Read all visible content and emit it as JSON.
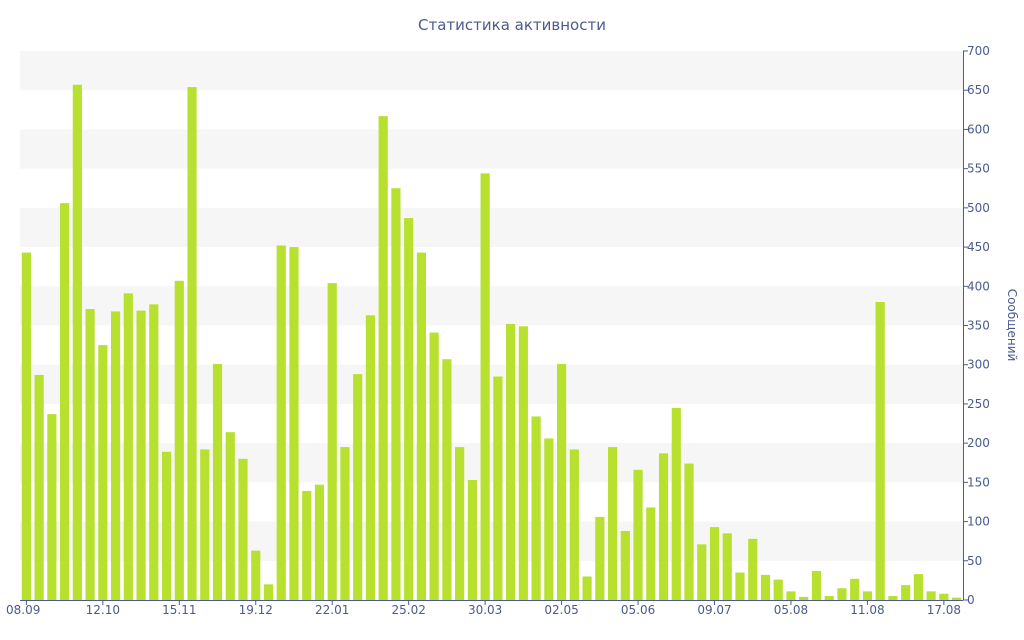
{
  "colors": {
    "bar": "#b8e02e",
    "axis": "#4b5b8c",
    "band": "#f6f6f6",
    "text": "#4b5b8c"
  },
  "chart_data": {
    "type": "bar",
    "title": "Статистика активности",
    "xlabel": "",
    "ylabel": "Сообщений",
    "ylim": [
      0,
      700
    ],
    "yticks": [
      0,
      50,
      100,
      150,
      200,
      250,
      300,
      350,
      400,
      450,
      500,
      550,
      600,
      650,
      700
    ],
    "y_axis_side": "right",
    "grid": "alternating horizontal bands",
    "x_tick_labels": [
      {
        "index": 0,
        "label": "08.09"
      },
      {
        "index": 6,
        "label": "12.10"
      },
      {
        "index": 12,
        "label": "15.11"
      },
      {
        "index": 18,
        "label": "19.12"
      },
      {
        "index": 24,
        "label": "22.01"
      },
      {
        "index": 30,
        "label": "25.02"
      },
      {
        "index": 36,
        "label": "30.03"
      },
      {
        "index": 42,
        "label": "02.05"
      },
      {
        "index": 48,
        "label": "05.06"
      },
      {
        "index": 54,
        "label": "09.07"
      },
      {
        "index": 60,
        "label": "05.08"
      },
      {
        "index": 66,
        "label": "11.08"
      },
      {
        "index": 72,
        "label": "17.08"
      }
    ],
    "values": [
      443,
      287,
      237,
      506,
      657,
      371,
      325,
      368,
      391,
      369,
      377,
      189,
      407,
      654,
      192,
      301,
      214,
      180,
      63,
      20,
      452,
      450,
      139,
      147,
      404,
      195,
      288,
      363,
      617,
      525,
      487,
      443,
      341,
      307,
      195,
      153,
      544,
      285,
      352,
      349,
      234,
      206,
      301,
      192,
      30,
      106,
      195,
      88,
      166,
      118,
      187,
      245,
      174,
      71,
      93,
      85,
      35,
      78,
      32,
      26,
      11,
      4,
      37,
      5,
      15,
      27,
      11,
      380,
      5,
      19,
      33,
      11,
      8,
      3
    ]
  }
}
